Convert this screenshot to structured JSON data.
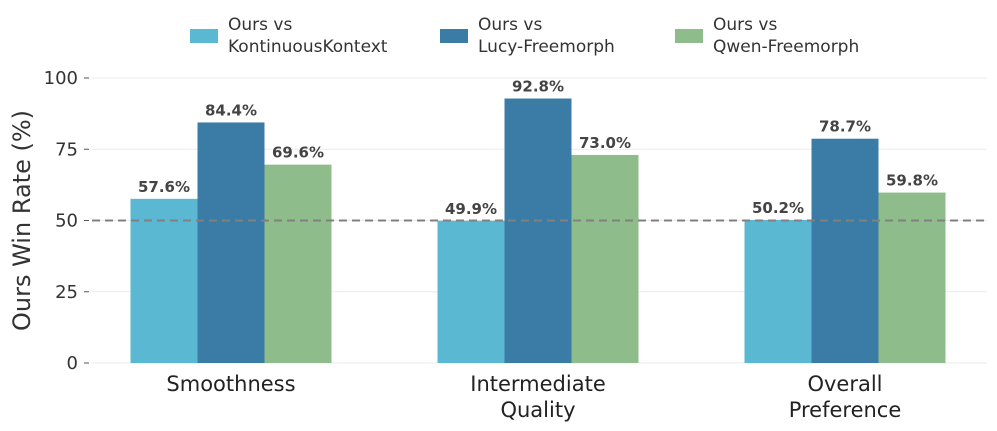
{
  "chart_data": {
    "type": "bar",
    "categories": [
      "Smoothness",
      "Intermediate\nQuality",
      "Overall\nPreference"
    ],
    "series": [
      {
        "name": "Ours vs\nKontinuousKontext",
        "values": [
          57.6,
          49.9,
          50.2
        ],
        "color": "#5bb8d2"
      },
      {
        "name": "Ours vs\nLucy-Freemorph",
        "values": [
          84.4,
          92.8,
          78.7
        ],
        "color": "#3b7ca7"
      },
      {
        "name": "Ours vs\nQwen-Freemorph",
        "values": [
          69.6,
          73.0,
          59.8
        ],
        "color": "#8fbc8b"
      }
    ],
    "value_labels": [
      [
        "57.6%",
        "49.9%",
        "50.2%"
      ],
      [
        "84.4%",
        "92.8%",
        "78.7%"
      ],
      [
        "69.6%",
        "73.0%",
        "59.8%"
      ]
    ],
    "ylabel": "Ours Win Rate (%)",
    "ylim": [
      0,
      100
    ],
    "yticks": [
      0,
      25,
      50,
      75,
      100
    ],
    "ytick_labels": [
      "0",
      "25",
      "50",
      "75",
      "100"
    ],
    "reference_line": 50,
    "reference_line_color": "#808080",
    "grid": true,
    "legend_position": "top-center"
  }
}
